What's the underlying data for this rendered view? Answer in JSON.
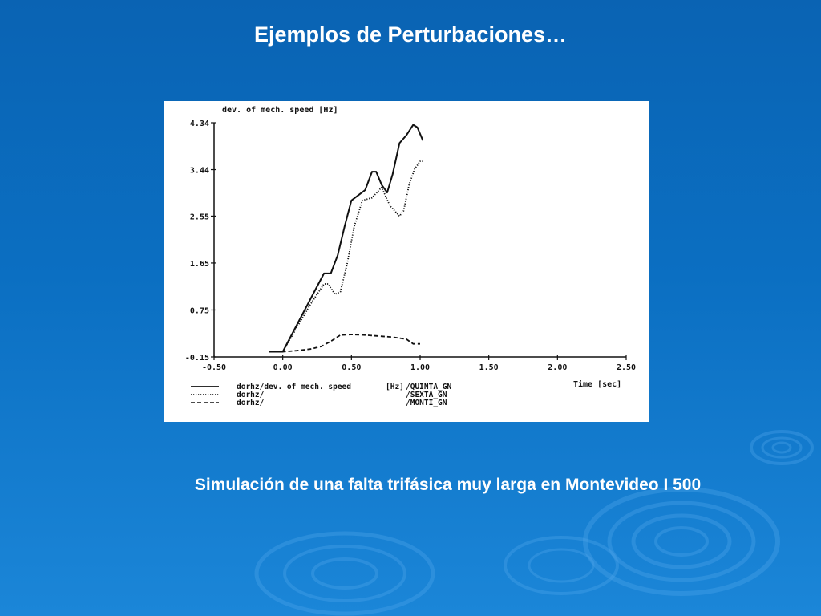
{
  "slide": {
    "title": "Ejemplos de Perturbaciones…",
    "caption": "Simulación de una falta trifásica muy larga en Montevideo I 500"
  },
  "colors": {
    "background": "#0b6fc2",
    "text": "#ffffff",
    "plot_ink": "#111111"
  },
  "chart_data": {
    "type": "line",
    "title": "",
    "ylabel": "dev. of mech. speed [Hz]",
    "xlabel": "Time [sec]",
    "xlim": [
      -0.5,
      2.5
    ],
    "ylim": [
      -0.15,
      4.34
    ],
    "x_ticks": [
      "-0.50",
      "0.00",
      "0.50",
      "1.00",
      "1.50",
      "2.00",
      "2.50"
    ],
    "y_ticks": [
      "-0.15",
      "0.75",
      "1.65",
      "2.55",
      "3.44",
      "4.34"
    ],
    "grid": false,
    "legend_position": "bottom-left",
    "series": [
      {
        "name": "QUINTA_GN",
        "legend_left": "dorhz/dev. of mech. speed",
        "legend_unit": "[Hz]",
        "legend_right": "/QUINTA_GN",
        "style": "solid",
        "x": [
          -0.1,
          0.0,
          0.1,
          0.2,
          0.3,
          0.35,
          0.4,
          0.45,
          0.5,
          0.55,
          0.6,
          0.65,
          0.68,
          0.72,
          0.76,
          0.8,
          0.85,
          0.9,
          0.95,
          0.98,
          1.02
        ],
        "y": [
          -0.05,
          -0.05,
          0.45,
          0.95,
          1.45,
          1.45,
          1.8,
          2.35,
          2.85,
          2.95,
          3.05,
          3.4,
          3.4,
          3.15,
          3.0,
          3.35,
          3.95,
          4.1,
          4.3,
          4.25,
          4.0
        ]
      },
      {
        "name": "SEXTA_GN",
        "legend_left": "dorhz/",
        "legend_unit": "",
        "legend_right": "/SEXTA_GN",
        "style": "dotted",
        "x": [
          -0.1,
          0.0,
          0.1,
          0.2,
          0.3,
          0.33,
          0.38,
          0.42,
          0.47,
          0.52,
          0.58,
          0.65,
          0.72,
          0.78,
          0.85,
          0.88,
          0.92,
          0.96,
          1.0,
          1.02
        ],
        "y": [
          -0.05,
          -0.05,
          0.4,
          0.85,
          1.25,
          1.25,
          1.05,
          1.1,
          1.65,
          2.35,
          2.85,
          2.9,
          3.1,
          2.75,
          2.55,
          2.65,
          3.15,
          3.45,
          3.6,
          3.6
        ]
      },
      {
        "name": "MONTI_GN",
        "legend_left": "dorhz/",
        "legend_unit": "",
        "legend_right": "/MONTI_GN",
        "style": "dashed",
        "x": [
          -0.1,
          0.0,
          0.1,
          0.2,
          0.28,
          0.35,
          0.42,
          0.5,
          0.6,
          0.7,
          0.8,
          0.9,
          0.95,
          1.0
        ],
        "y": [
          -0.05,
          -0.05,
          -0.03,
          0.0,
          0.05,
          0.15,
          0.27,
          0.28,
          0.27,
          0.25,
          0.23,
          0.19,
          0.1,
          0.1
        ]
      }
    ]
  }
}
